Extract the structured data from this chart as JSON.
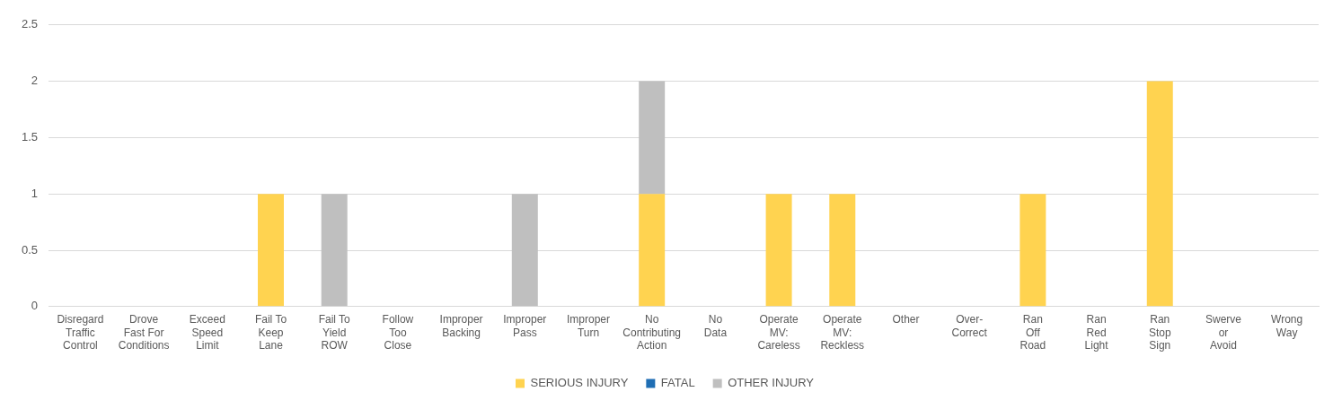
{
  "chart_data": {
    "type": "bar",
    "stacked": true,
    "categories": [
      "Disregard\nTraffic\nControl",
      "Drove\nFast For\nConditions",
      "Exceed\nSpeed\nLimit",
      "Fail To\nKeep\nLane",
      "Fail To\nYield\nROW",
      "Follow\nToo\nClose",
      "Improper\nBacking",
      "Improper\nPass",
      "Improper\nTurn",
      "No\nContributing\nAction",
      "No\nData",
      "Operate\nMV:\nCareless",
      "Operate\nMV:\nReckless",
      "Other",
      "Over-\nCorrect",
      "Ran\nOff\nRoad",
      "Ran\nRed\nLight",
      "Ran\nStop\nSign",
      "Swerve\nor\nAvoid",
      "Wrong\nWay"
    ],
    "series": [
      {
        "name": "SERIOUS INJURY",
        "color": "#ffd350",
        "values": [
          0,
          0,
          0,
          1,
          0,
          0,
          0,
          0,
          0,
          1,
          0,
          1,
          1,
          0,
          0,
          1,
          0,
          2,
          0,
          0
        ]
      },
      {
        "name": "FATAL",
        "color": "#1f6eb4",
        "values": [
          0,
          0,
          0,
          0,
          0,
          0,
          0,
          0,
          0,
          0,
          0,
          0,
          0,
          0,
          0,
          0,
          0,
          0,
          0,
          0
        ]
      },
      {
        "name": "OTHER INJURY",
        "color": "#bfbfbf",
        "values": [
          0,
          0,
          0,
          0,
          1,
          0,
          0,
          1,
          0,
          1,
          0,
          0,
          0,
          0,
          0,
          0,
          0,
          0,
          0,
          0
        ]
      }
    ],
    "ylim": [
      0,
      2.5
    ],
    "yticks": [
      0,
      0.5,
      1,
      1.5,
      2,
      2.5
    ],
    "grid": "y",
    "legend": "bottom"
  }
}
